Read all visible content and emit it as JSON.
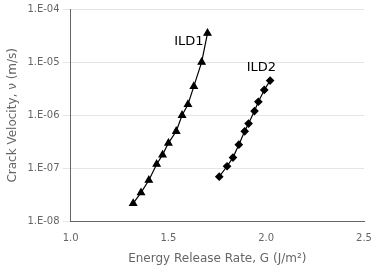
{
  "chart_data": {
    "type": "line",
    "xlabel": "Energy Release Rate, G (J/m²)",
    "ylabel": "Crack Velocity, ν (m/s)",
    "log": "y",
    "grid": "y",
    "xlim": [
      1.0,
      2.5
    ],
    "ylim": [
      1e-08,
      0.0001
    ],
    "xticks": [
      {
        "value": 1.0,
        "label": "1.0"
      },
      1.5,
      {
        "value": 2.0,
        "label": "2.0"
      },
      2.5
    ],
    "yticks": [
      {
        "value": 1e-08,
        "label": "1.E-08"
      },
      {
        "value": 1e-07,
        "label": "1.E-07"
      },
      {
        "value": 1e-06,
        "label": "1.E-06"
      },
      {
        "value": 1e-05,
        "label": "1.E-05"
      },
      {
        "value": 0.0001,
        "label": "1.E-04"
      }
    ],
    "series": [
      {
        "color": "#000000",
        "marker": "triangle",
        "line_style": "solid",
        "x": [
          1.32,
          1.36,
          1.4,
          1.44,
          1.47,
          1.5,
          1.54,
          1.57,
          1.6,
          1.63,
          1.67,
          1.7
        ],
        "values": [
          2.2e-08,
          3.5e-08,
          6e-08,
          1.2e-07,
          1.8e-07,
          3e-07,
          5e-07,
          1e-06,
          1.6e-06,
          3.5e-06,
          1e-05,
          3.5e-05
        ]
      },
      {
        "color": "#000000",
        "marker": "diamond",
        "line_style": "solid",
        "x": [
          1.76,
          1.8,
          1.83,
          1.86,
          1.89,
          1.91,
          1.94,
          1.96,
          1.99,
          2.02
        ],
        "values": [
          7e-08,
          1.1e-07,
          1.6e-07,
          2.8e-07,
          5e-07,
          7e-07,
          1.2e-06,
          1.8e-06,
          3e-06,
          4.5e-06
        ]
      }
    ],
    "annotations": [
      {
        "text": "ILD1",
        "x": 1.53,
        "y": 1.8e-05,
        "color": "#000000"
      },
      {
        "text": "ILD2",
        "x": 1.9,
        "y": 6e-06,
        "color": "#000000"
      }
    ]
  }
}
